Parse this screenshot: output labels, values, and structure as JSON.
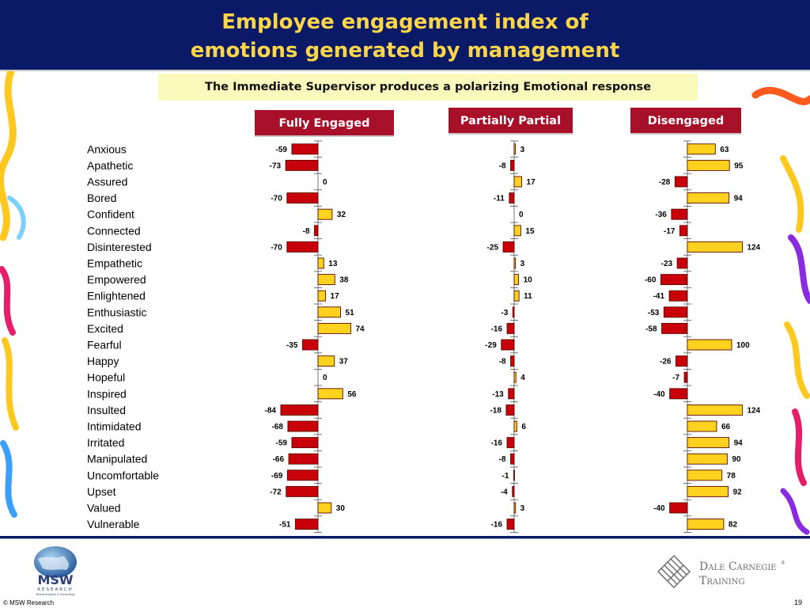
{
  "header": {
    "title_line1": "Employee engagement index of",
    "title_line2": "emotions generated by management"
  },
  "subtitle": "The Immediate Supervisor produces a polarizing Emotional response",
  "columns": [
    {
      "label": "Fully Engaged"
    },
    {
      "label": "Partially Partial"
    },
    {
      "label": "Disengaged"
    }
  ],
  "chart_data": {
    "type": "bar",
    "orientation": "horizontal",
    "categories": [
      "Anxious",
      "Apathetic",
      "Assured",
      "Bored",
      "Confident",
      "Connected",
      "Disinterested",
      "Empathetic",
      "Empowered",
      "Enlightened",
      "Enthusiastic",
      "Excited",
      "Fearful",
      "Happy",
      "Hopeful",
      "Inspired",
      "Insulted",
      "Intimidated",
      "Irritated",
      "Manipulated",
      "Uncomfortable",
      "Upset",
      "Valued",
      "Vulnerable"
    ],
    "series": [
      {
        "name": "Fully Engaged",
        "values": [
          -59,
          -73,
          0,
          -70,
          32,
          -8,
          -70,
          13,
          38,
          17,
          51,
          74,
          -35,
          37,
          0,
          56,
          -84,
          -68,
          -59,
          -66,
          -69,
          -72,
          30,
          -51
        ]
      },
      {
        "name": "Partially Partial",
        "values": [
          3,
          -8,
          17,
          -11,
          0,
          15,
          -25,
          3,
          10,
          11,
          -3,
          -16,
          -29,
          -8,
          4,
          -13,
          -18,
          6,
          -16,
          -8,
          -1,
          -4,
          3,
          -16
        ]
      },
      {
        "name": "Disengaged",
        "values": [
          63,
          95,
          -28,
          94,
          -36,
          -17,
          124,
          -23,
          -60,
          -41,
          -53,
          -58,
          100,
          -26,
          -7,
          -40,
          124,
          66,
          94,
          90,
          78,
          92,
          -40,
          82
        ]
      }
    ],
    "positive_color": "#ffd21f",
    "negative_color": "#c8000a",
    "grid": false
  },
  "footer": {
    "copyright": "© MSW Research",
    "page_number": "19",
    "msw_logo_text": "MSW",
    "msw_logo_subtext": "RESEARCH",
    "msw_logo_tagline": "Brand Insights & Consulting",
    "dc_logo_line1": "Dale Carnegie",
    "dc_logo_line2": "Training",
    "dc_logo_mark": "®"
  },
  "colors": {
    "header_bg": "#0b1a66",
    "title": "#ffd64a",
    "subtitle_bg": "#fafabc",
    "column_header_bg": "#a8102a"
  }
}
